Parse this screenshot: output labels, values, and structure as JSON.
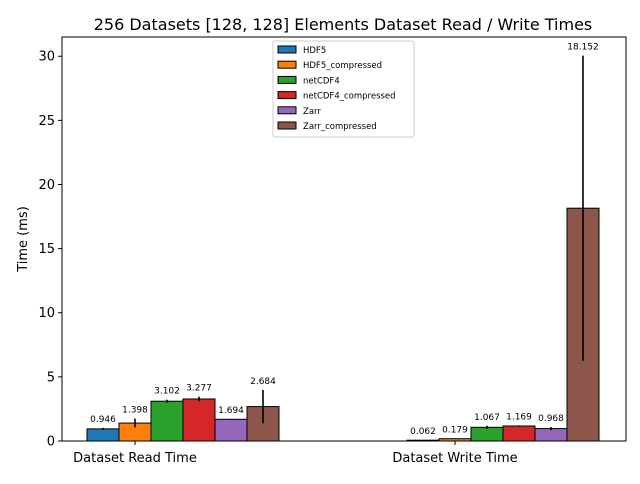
{
  "chart_data": {
    "type": "bar",
    "title": "256 Datasets [128, 128] Elements Dataset Read / Write Times",
    "xlabel": "",
    "ylabel": "Time (ms)",
    "categories": [
      "Dataset Read Time",
      "Dataset Write Time"
    ],
    "ylim": [
      0,
      31.5
    ],
    "yticks": [
      0,
      5,
      10,
      15,
      20,
      25,
      30
    ],
    "grid": false,
    "legend_position": "top-center",
    "series": [
      {
        "name": "HDF5",
        "color": "#1f77b4",
        "values": [
          0.946,
          0.062
        ],
        "errors": [
          0.08,
          0.01
        ],
        "labels": [
          "0.946",
          "0.062"
        ]
      },
      {
        "name": "HDF5_compressed",
        "color": "#ff7f0e",
        "values": [
          1.398,
          0.179
        ],
        "errors": [
          0.35,
          0.02
        ],
        "labels": [
          "1.398",
          "0.179"
        ]
      },
      {
        "name": "netCDF4",
        "color": "#2ca02c",
        "values": [
          3.102,
          1.067
        ],
        "errors": [
          0.12,
          0.12
        ],
        "labels": [
          "3.102",
          "1.067"
        ]
      },
      {
        "name": "netCDF4_compressed",
        "color": "#d62728",
        "values": [
          3.277,
          1.169
        ],
        "errors": [
          0.18,
          0.05
        ],
        "labels": [
          "3.277",
          "1.169"
        ]
      },
      {
        "name": "Zarr",
        "color": "#9467bd",
        "values": [
          1.694,
          0.968
        ],
        "errors": [
          0.03,
          0.12
        ],
        "labels": [
          "1.694",
          "0.968"
        ]
      },
      {
        "name": "Zarr_compressed",
        "color": "#8c564b",
        "values": [
          2.684,
          18.152
        ],
        "errors": [
          1.3,
          11.9
        ],
        "labels": [
          "2.684",
          "18.152"
        ]
      }
    ]
  }
}
